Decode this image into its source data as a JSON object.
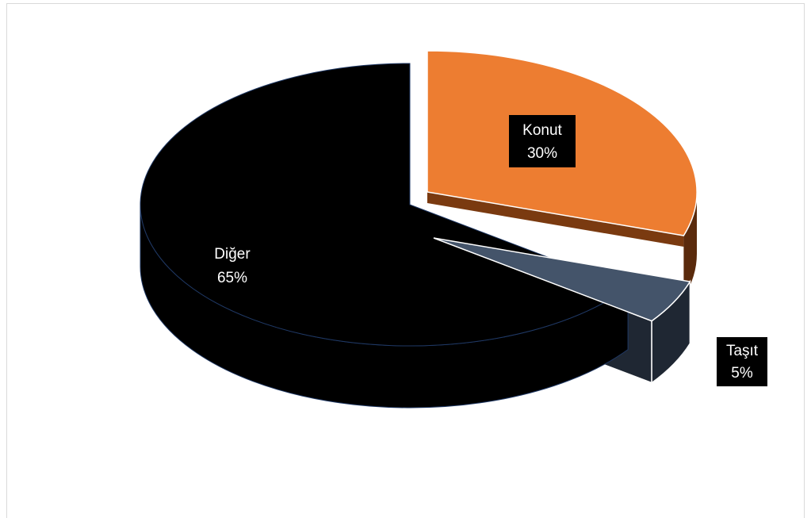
{
  "chart_data": {
    "type": "pie",
    "style": "3d-exploded",
    "title": "",
    "slices": [
      {
        "name": "Konut",
        "value": 30,
        "label": "Konut",
        "pct": "30%",
        "color": "#ED7D31"
      },
      {
        "name": "Taşıt",
        "value": 5,
        "label": "Taşıt",
        "pct": "5%",
        "color": "#44546A"
      },
      {
        "name": "Diğer",
        "value": 65,
        "label": "Diğer",
        "pct": "65%",
        "color": "#000000"
      }
    ],
    "legend": "none",
    "data_labels": "category-and-percent"
  }
}
